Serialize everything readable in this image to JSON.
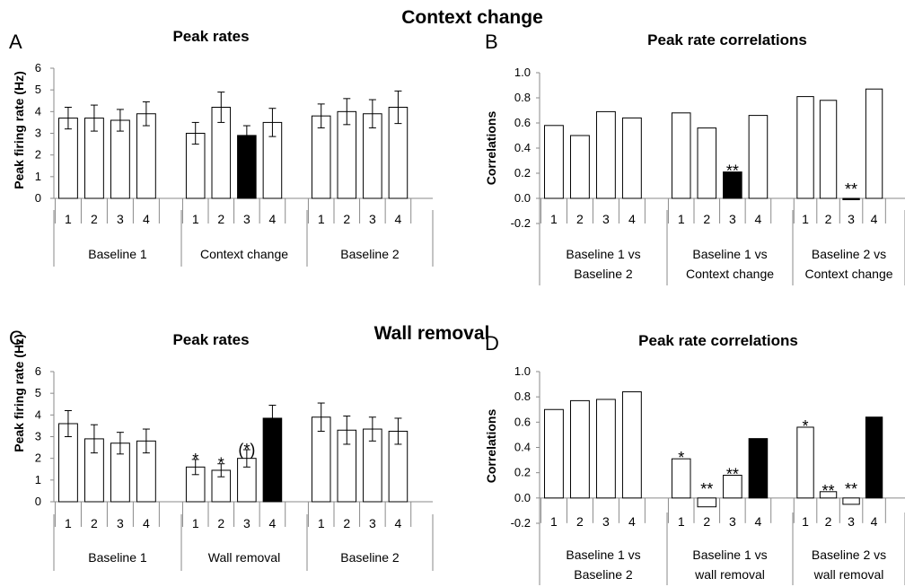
{
  "sections": [
    {
      "title": "Context change"
    },
    {
      "title": "Wall removal"
    }
  ],
  "chart_data": [
    {
      "letter": "A",
      "type": "bar",
      "title": "Peak rates",
      "ylabel": "Peak firing rate (Hz)",
      "ylim": [
        0,
        6
      ],
      "yticks": [
        "0",
        "1",
        "2",
        "3",
        "4",
        "5",
        "6"
      ],
      "groups": [
        {
          "label": [
            "Baseline 1"
          ],
          "categories": [
            "1",
            "2",
            "3",
            "4"
          ],
          "values": [
            3.7,
            3.7,
            3.6,
            3.9
          ],
          "errors": [
            0.5,
            0.6,
            0.5,
            0.55
          ],
          "filled": [
            false,
            false,
            false,
            false
          ],
          "stars": [
            "",
            "",
            "",
            ""
          ]
        },
        {
          "label": [
            "Context change"
          ],
          "categories": [
            "1",
            "2",
            "3",
            "4"
          ],
          "values": [
            3.0,
            4.2,
            2.9,
            3.5
          ],
          "errors": [
            0.5,
            0.7,
            0.45,
            0.65
          ],
          "filled": [
            false,
            false,
            true,
            false
          ],
          "stars": [
            "",
            "",
            "",
            ""
          ]
        },
        {
          "label": [
            "Baseline 2"
          ],
          "categories": [
            "1",
            "2",
            "3",
            "4"
          ],
          "values": [
            3.8,
            4.0,
            3.9,
            4.2
          ],
          "errors": [
            0.55,
            0.6,
            0.65,
            0.75
          ],
          "filled": [
            false,
            false,
            false,
            false
          ],
          "stars": [
            "",
            "",
            "",
            ""
          ]
        }
      ]
    },
    {
      "letter": "B",
      "type": "bar",
      "title": "Peak rate correlations",
      "ylabel": "Correlations",
      "ylim": [
        -0.2,
        1.0
      ],
      "yticks": [
        "1.0",
        "0.8",
        "0.6",
        "0.4",
        "0.2",
        "0.0",
        "-0.2"
      ],
      "groups": [
        {
          "label": [
            "Baseline 1 vs",
            "Baseline 2"
          ],
          "categories": [
            "1",
            "2",
            "3",
            "4"
          ],
          "values": [
            0.58,
            0.5,
            0.69,
            0.64
          ],
          "errors": [],
          "filled": [
            false,
            false,
            false,
            false
          ],
          "stars": [
            "",
            "",
            "",
            ""
          ]
        },
        {
          "label": [
            "Baseline 1 vs",
            "Context change"
          ],
          "categories": [
            "1",
            "2",
            "3",
            "4"
          ],
          "values": [
            0.68,
            0.56,
            0.21,
            0.66
          ],
          "errors": [],
          "filled": [
            false,
            false,
            true,
            false
          ],
          "stars": [
            "",
            "",
            "**",
            ""
          ]
        },
        {
          "label": [
            "Baseline 2 vs",
            "Context change"
          ],
          "categories": [
            "1",
            "2",
            "3",
            "4"
          ],
          "values": [
            0.81,
            0.78,
            -0.01,
            0.87
          ],
          "errors": [],
          "filled": [
            false,
            false,
            true,
            false
          ],
          "stars": [
            "",
            "",
            "**",
            ""
          ]
        }
      ]
    },
    {
      "letter": "C",
      "type": "bar",
      "title": "Peak rates",
      "ylabel": "Peak firing rate (Hz)",
      "ylim": [
        0,
        6
      ],
      "yticks": [
        "0",
        "1",
        "2",
        "3",
        "4",
        "5",
        "6"
      ],
      "groups": [
        {
          "label": [
            "Baseline 1"
          ],
          "categories": [
            "1",
            "2",
            "3",
            "4"
          ],
          "values": [
            3.6,
            2.9,
            2.7,
            2.8
          ],
          "errors": [
            0.6,
            0.65,
            0.5,
            0.55
          ],
          "filled": [
            false,
            false,
            false,
            false
          ],
          "stars": [
            "",
            "",
            "",
            ""
          ]
        },
        {
          "label": [
            "Wall removal"
          ],
          "categories": [
            "1",
            "2",
            "3",
            "4"
          ],
          "values": [
            1.6,
            1.45,
            2.0,
            3.85
          ],
          "errors": [
            0.35,
            0.3,
            0.4,
            0.6
          ],
          "filled": [
            false,
            false,
            false,
            true
          ],
          "stars": [
            "*",
            "*",
            "(*)",
            ""
          ]
        },
        {
          "label": [
            "Baseline 2"
          ],
          "categories": [
            "1",
            "2",
            "3",
            "4"
          ],
          "values": [
            3.9,
            3.3,
            3.35,
            3.25
          ],
          "errors": [
            0.65,
            0.65,
            0.55,
            0.6
          ],
          "filled": [
            false,
            false,
            false,
            false
          ],
          "stars": [
            "",
            "",
            "",
            ""
          ]
        }
      ]
    },
    {
      "letter": "D",
      "type": "bar",
      "title": "Peak rate correlations",
      "ylabel": "Correlations",
      "ylim": [
        -0.2,
        1.0
      ],
      "yticks": [
        "1.0",
        "0.8",
        "0.6",
        "0.4",
        "0.2",
        "0.0",
        "-0.2"
      ],
      "groups": [
        {
          "label": [
            "Baseline 1 vs",
            "Baseline 2"
          ],
          "categories": [
            "1",
            "2",
            "3",
            "4"
          ],
          "values": [
            0.7,
            0.77,
            0.78,
            0.84
          ],
          "errors": [],
          "filled": [
            false,
            false,
            false,
            false
          ],
          "stars": [
            "",
            "",
            "",
            ""
          ]
        },
        {
          "label": [
            "Baseline 1 vs",
            "wall removal"
          ],
          "categories": [
            "1",
            "2",
            "3",
            "4"
          ],
          "values": [
            0.31,
            -0.07,
            0.18,
            0.47
          ],
          "errors": [],
          "filled": [
            false,
            false,
            false,
            true
          ],
          "stars": [
            "*",
            "**",
            "**",
            ""
          ]
        },
        {
          "label": [
            "Baseline 2 vs",
            "wall removal"
          ],
          "categories": [
            "1",
            "2",
            "3",
            "4"
          ],
          "values": [
            0.56,
            0.05,
            -0.05,
            0.64
          ],
          "errors": [],
          "filled": [
            false,
            false,
            false,
            true
          ],
          "stars": [
            "*",
            "**",
            "**",
            ""
          ]
        }
      ]
    }
  ]
}
